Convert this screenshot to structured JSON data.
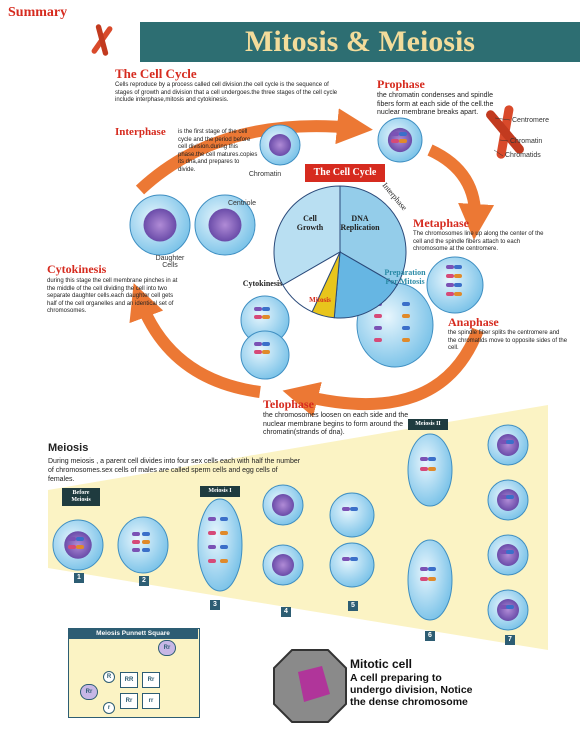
{
  "header": {
    "label": "Summary",
    "title": "Mitosis & Meiosis"
  },
  "cell_cycle": {
    "title": "The Cell Cycle",
    "text": "Cells reproduce by a process called cell division.the cell cycle is the sequence of stages of growth and division that a cell undergoes.the three stages of the cell cycle include interphase,mitosis and cytokinesis."
  },
  "stages": {
    "interphase": {
      "title": "Interphase",
      "text": "is the first stage of the cell cycle and the period before cell division.during this phase.the cell matures.copies its dna,and prepares to divide."
    },
    "prophase": {
      "title": "Prophase",
      "text": "the chromatin condenses and spindle fibers form at each side of the cell.the nuclear membrane breaks apart."
    },
    "metaphase": {
      "title": "Metaphase",
      "text": "The chromosomes line up along the center of the cell and the spindle fibers attach to each chromosome at the centromere."
    },
    "anaphase": {
      "title": "Anaphase",
      "text": "the spindle fiber splits the centromere and the chromatids move to opposite sides of the cell."
    },
    "telophase": {
      "title": "Telophase",
      "text": "the chromosomes loosen on each side and the nuclear membrane begins to form around the chromatin(strands of dna)."
    },
    "cytokinesis": {
      "title": "Cytokinesis",
      "text": "during this stage the cell membrane pinches in at the middle of the cell dividing the cell into two separate daughter cells.each daughter cell gets half of the cell organelles and an identical set of chromosomes."
    }
  },
  "labels": {
    "chromatin": "Chromatin",
    "centriole": "Centriole",
    "daughter_cells": "Daughter Cells"
  },
  "chromosome_labels": [
    "Centromere",
    "Chromatin",
    "Chromatids"
  ],
  "pie": {
    "title": "The Cell Cycle",
    "ring": "Interphase",
    "cell_growth": "Cell Growth",
    "dna_replication": "DNA Replication",
    "preparation": "Preparation For Mitosis",
    "mitosis": "Mitosis",
    "cytokinesis": "Cytokinesis"
  },
  "meiosis": {
    "title": "Meiosis",
    "text": "During meiosis , a parent cell divides into four sex cells each with half the number of chromosomes.sex cells of males are called sperm cells and egg cells of females.",
    "tags": [
      "Before Meiosis",
      "Meiosis I",
      "Meiosis II"
    ],
    "steps": [
      "1",
      "2",
      "3",
      "4",
      "5",
      "6",
      "7"
    ]
  },
  "punnett": {
    "title": "Meiosis Punnett Square",
    "parent_top": "Rr",
    "parent_left": "Rr",
    "alleles": [
      "R",
      "r"
    ],
    "cells": [
      "RR",
      "Rr",
      "Rr",
      "rr"
    ]
  },
  "mitotic": {
    "title": "Mitotic cell",
    "text": "A cell preparing to undergo division, Notice the dense chromosome"
  }
}
